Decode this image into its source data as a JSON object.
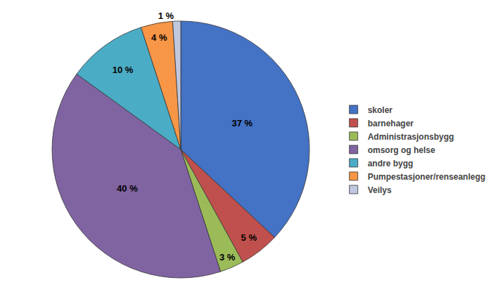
{
  "chart_data": {
    "type": "pie",
    "categories": [
      "skoler",
      "barnehager",
      "Administrasjonsbygg",
      "omsorg og helse",
      "andre bygg",
      "Pumpestasjoner/renseanlegg",
      "Veilys"
    ],
    "values": [
      37,
      5,
      3,
      40,
      10,
      4,
      1
    ],
    "value_labels": [
      "37 %",
      "5 %",
      "3 %",
      "40 %",
      "10 %",
      "4 %",
      "1 %"
    ],
    "colors": [
      "#4472c4",
      "#c0504d",
      "#9bbb59",
      "#8064a2",
      "#4bacc6",
      "#f79646",
      "#c0c8e0"
    ],
    "data_labels": true,
    "legend": "right"
  }
}
